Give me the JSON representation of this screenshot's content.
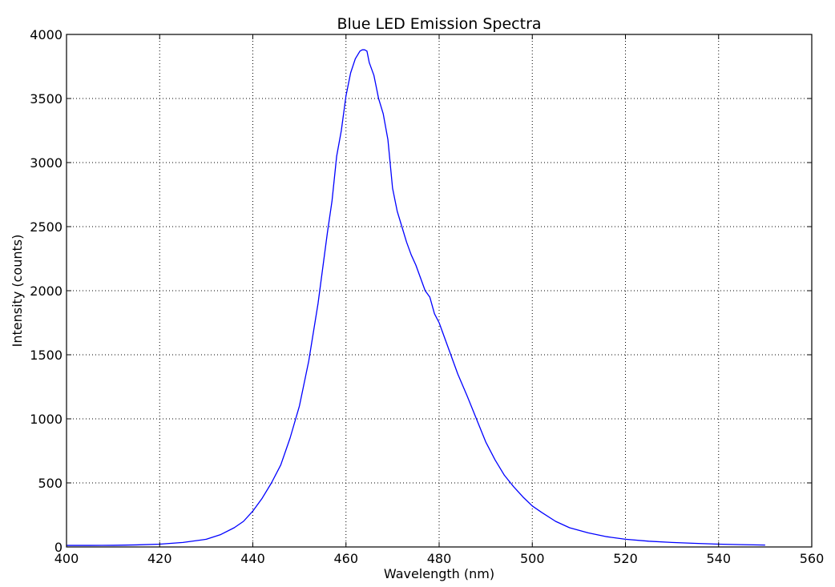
{
  "chart_data": {
    "type": "line",
    "title": "Blue LED Emission Spectra",
    "xlabel": "Wavelength (nm)",
    "ylabel": "Intensity (counts)",
    "xlim": [
      400,
      560
    ],
    "ylim": [
      0,
      4000
    ],
    "xticks": [
      400,
      420,
      440,
      460,
      480,
      500,
      520,
      540,
      560
    ],
    "yticks": [
      0,
      500,
      1000,
      1500,
      2000,
      2500,
      3000,
      3500,
      4000
    ],
    "grid": true,
    "colors": {
      "line": "#0000ff"
    },
    "series": [
      {
        "x": [
          400,
          405,
          410,
          415,
          420,
          425,
          430,
          433,
          436,
          438,
          440,
          442,
          444,
          446,
          448,
          450,
          452,
          454,
          456,
          457,
          458,
          459,
          460,
          461,
          462,
          463,
          463.5,
          464,
          464.5,
          465,
          466,
          467,
          468,
          469,
          470,
          471,
          472,
          473,
          474,
          475,
          476,
          477,
          478,
          479,
          480,
          482,
          484,
          486,
          488,
          490,
          492,
          494,
          496,
          498,
          500,
          502,
          505,
          508,
          512,
          516,
          520,
          525,
          530,
          535,
          540,
          545,
          550
        ],
        "y": [
          12,
          12,
          13,
          16,
          22,
          35,
          60,
          95,
          150,
          200,
          280,
          380,
          500,
          640,
          850,
          1100,
          1450,
          1900,
          2450,
          2700,
          3050,
          3250,
          3520,
          3700,
          3810,
          3870,
          3880,
          3880,
          3870,
          3780,
          3680,
          3500,
          3380,
          3180,
          2800,
          2620,
          2500,
          2380,
          2280,
          2200,
          2100,
          2000,
          1950,
          1820,
          1750,
          1550,
          1350,
          1180,
          1000,
          820,
          680,
          560,
          470,
          390,
          320,
          270,
          200,
          150,
          110,
          80,
          60,
          45,
          35,
          28,
          22,
          18,
          15
        ]
      }
    ]
  }
}
